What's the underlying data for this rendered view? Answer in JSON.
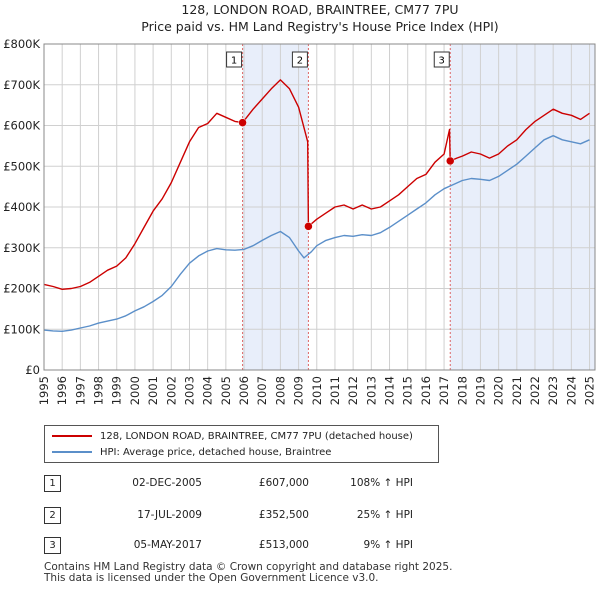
{
  "chart_data": {
    "type": "line",
    "title": "128, LONDON ROAD, BRAINTREE, CM77 7PU",
    "subtitle": "Price paid vs. HM Land Registry's House Price Index (HPI)",
    "xlim": [
      1995.0,
      2025.3
    ],
    "ylim": [
      0,
      800000
    ],
    "x_tick_labels": [
      "1995",
      "1996",
      "1997",
      "1998",
      "1999",
      "2000",
      "2001",
      "2002",
      "2003",
      "2004",
      "2005",
      "2006",
      "2007",
      "2008",
      "2009",
      "2010",
      "2011",
      "2012",
      "2013",
      "2014",
      "2015",
      "2016",
      "2017",
      "2018",
      "2019",
      "2020",
      "2021",
      "2022",
      "2023",
      "2024",
      "2025"
    ],
    "y_ticks": [
      0,
      100000,
      200000,
      300000,
      400000,
      500000,
      600000,
      700000,
      800000
    ],
    "y_tick_labels": [
      "£0",
      "£100K",
      "£200K",
      "£300K",
      "£400K",
      "£500K",
      "£600K",
      "£700K",
      "£800K"
    ],
    "series": [
      {
        "name": "128, LONDON ROAD, BRAINTREE, CM77 7PU (detached house)",
        "color": "#cc0000",
        "x": [
          1995.0,
          1995.5,
          1996.0,
          1996.5,
          1997.0,
          1997.5,
          1998.0,
          1998.5,
          1999.0,
          1999.5,
          2000.0,
          2000.5,
          2001.0,
          2001.5,
          2002.0,
          2002.5,
          2003.0,
          2003.5,
          2004.0,
          2004.5,
          2005.0,
          2005.5,
          2005.92,
          2006.5,
          2007.0,
          2007.5,
          2008.0,
          2008.5,
          2009.0,
          2009.5,
          2009.54,
          2010.0,
          2010.5,
          2011.0,
          2011.5,
          2012.0,
          2012.5,
          2013.0,
          2013.5,
          2014.0,
          2014.5,
          2015.0,
          2015.5,
          2016.0,
          2016.5,
          2017.0,
          2017.3,
          2017.34,
          2017.7,
          2018.0,
          2018.5,
          2019.0,
          2019.5,
          2020.0,
          2020.5,
          2021.0,
          2021.5,
          2022.0,
          2022.5,
          2023.0,
          2023.5,
          2024.0,
          2024.5,
          2025.0
        ],
        "values": [
          210000,
          205000,
          198000,
          200000,
          205000,
          215000,
          230000,
          245000,
          255000,
          275000,
          310000,
          350000,
          390000,
          420000,
          460000,
          510000,
          560000,
          595000,
          605000,
          630000,
          620000,
          610000,
          607000,
          640000,
          665000,
          690000,
          712000,
          690000,
          645000,
          560000,
          352500,
          370000,
          385000,
          400000,
          405000,
          395000,
          405000,
          395000,
          400000,
          415000,
          430000,
          450000,
          470000,
          480000,
          510000,
          530000,
          590000,
          513000,
          520000,
          525000,
          535000,
          530000,
          520000,
          530000,
          550000,
          565000,
          590000,
          610000,
          625000,
          640000,
          630000,
          625000,
          615000,
          630000
        ]
      },
      {
        "name": "HPI: Average price, detached house, Braintree",
        "color": "#5b8fc9",
        "x": [
          1995.0,
          1995.5,
          1996.0,
          1996.5,
          1997.0,
          1997.5,
          1998.0,
          1998.5,
          1999.0,
          1999.5,
          2000.0,
          2000.5,
          2001.0,
          2001.5,
          2002.0,
          2002.5,
          2003.0,
          2003.5,
          2004.0,
          2004.5,
          2005.0,
          2005.5,
          2006.0,
          2006.5,
          2007.0,
          2007.5,
          2008.0,
          2008.5,
          2009.0,
          2009.3,
          2009.7,
          2010.0,
          2010.5,
          2011.0,
          2011.5,
          2012.0,
          2012.5,
          2013.0,
          2013.5,
          2014.0,
          2014.5,
          2015.0,
          2015.5,
          2016.0,
          2016.5,
          2017.0,
          2017.5,
          2018.0,
          2018.5,
          2019.0,
          2019.5,
          2020.0,
          2020.5,
          2021.0,
          2021.5,
          2022.0,
          2022.5,
          2023.0,
          2023.5,
          2024.0,
          2024.5,
          2025.0
        ],
        "values": [
          98000,
          96000,
          95000,
          98000,
          103000,
          108000,
          115000,
          120000,
          125000,
          133000,
          145000,
          155000,
          168000,
          183000,
          205000,
          235000,
          262000,
          280000,
          292000,
          298000,
          295000,
          294000,
          296000,
          305000,
          318000,
          330000,
          340000,
          325000,
          292000,
          275000,
          290000,
          305000,
          318000,
          325000,
          330000,
          328000,
          332000,
          330000,
          337000,
          350000,
          365000,
          380000,
          395000,
          410000,
          430000,
          445000,
          455000,
          465000,
          470000,
          468000,
          465000,
          475000,
          490000,
          505000,
          525000,
          545000,
          565000,
          575000,
          565000,
          560000,
          555000,
          565000
        ]
      }
    ],
    "sales": [
      {
        "label": "1",
        "x": 2005.92,
        "value": 607000
      },
      {
        "label": "2",
        "x": 2009.54,
        "value": 352500
      },
      {
        "label": "3",
        "x": 2017.34,
        "value": 513000
      }
    ]
  },
  "legend": {
    "property_label": "128, LONDON ROAD, BRAINTREE, CM77 7PU (detached house)",
    "hpi_label": "HPI: Average price, detached house, Braintree"
  },
  "transactions": [
    {
      "num": "1",
      "date": "02-DEC-2005",
      "price": "£607,000",
      "hpi": "108% ↑ HPI"
    },
    {
      "num": "2",
      "date": "17-JUL-2009",
      "price": "£352,500",
      "hpi": "25% ↑ HPI"
    },
    {
      "num": "3",
      "date": "05-MAY-2017",
      "price": "£513,000",
      "hpi": "9% ↑ HPI"
    }
  ],
  "footer": {
    "line1": "Contains HM Land Registry data © Crown copyright and database right 2025.",
    "line2": "This data is licensed under the Open Government Licence v3.0."
  },
  "colors": {
    "property": "#cc0000",
    "hpi": "#5b8fc9",
    "shade": "#e8eefa",
    "grid": "#d0d0d0"
  }
}
